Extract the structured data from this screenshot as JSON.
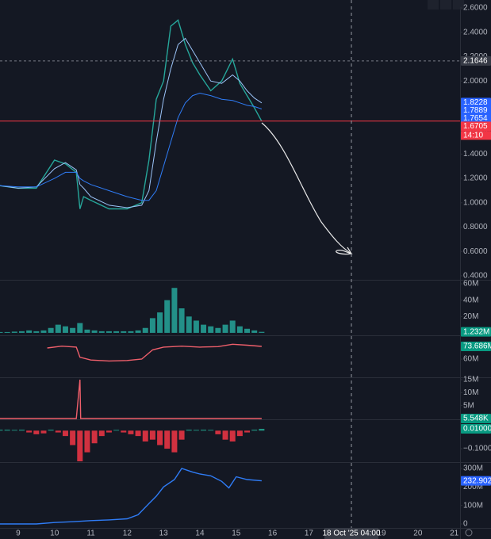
{
  "chart_data": [
    {
      "type": "line",
      "x": [
        8.5,
        9,
        9.5,
        10,
        10.3,
        10.6,
        10.7,
        10.8,
        11,
        11.5,
        12,
        12.4,
        12.6,
        12.8,
        13,
        13.2,
        13.4,
        13.6,
        13.8,
        14,
        14.3,
        14.6,
        14.9,
        15.1,
        15.3,
        15.5,
        15.7
      ],
      "series": [
        {
          "color": "#26a69a",
          "values": [
            1.14,
            1.12,
            1.12,
            1.35,
            1.32,
            1.25,
            0.95,
            1.05,
            1.02,
            0.95,
            0.95,
            1.0,
            1.35,
            1.85,
            2.0,
            2.45,
            2.5,
            2.3,
            2.15,
            2.05,
            1.92,
            2.0,
            2.18,
            1.98,
            1.88,
            1.78,
            1.67
          ]
        },
        {
          "color": "#9cc4f8",
          "values": [
            1.14,
            1.12,
            1.13,
            1.28,
            1.33,
            1.27,
            1.15,
            1.12,
            1.05,
            0.98,
            0.96,
            0.98,
            1.1,
            1.5,
            1.85,
            2.1,
            2.3,
            2.35,
            2.25,
            2.15,
            2.0,
            1.98,
            2.05,
            2.0,
            1.92,
            1.86,
            1.82
          ]
        },
        {
          "color": "#2f7cf6",
          "values": [
            1.14,
            1.13,
            1.13,
            1.2,
            1.25,
            1.25,
            1.2,
            1.18,
            1.15,
            1.1,
            1.05,
            1.02,
            1.02,
            1.1,
            1.3,
            1.5,
            1.7,
            1.82,
            1.88,
            1.9,
            1.88,
            1.85,
            1.84,
            1.82,
            1.8,
            1.79,
            1.77
          ]
        }
      ],
      "ylim": [
        0.374,
        2.665
      ],
      "yticks": [
        {
          "value": 0.4,
          "label": "0.4000"
        },
        {
          "value": 0.6,
          "label": "0.6000"
        },
        {
          "value": 0.8,
          "label": "0.8000"
        },
        {
          "value": 1.0,
          "label": "1.0000"
        },
        {
          "value": 1.2,
          "label": "1.2000"
        },
        {
          "value": 1.4,
          "label": "1.4000"
        },
        {
          "value": 1.6,
          "label": "1.6000"
        },
        {
          "value": 1.8,
          "label": "1.8000"
        },
        {
          "value": 2.0,
          "label": "2.0000"
        },
        {
          "value": 2.2,
          "label": "2.2000"
        },
        {
          "value": 2.4,
          "label": "2.4000"
        },
        {
          "value": 2.6,
          "label": "2.6000"
        }
      ],
      "labels": [
        {
          "value": 2.1646,
          "color": "#363a45",
          "line": "dashed"
        },
        {
          "value": 1.8228,
          "color": "#2962ff"
        },
        {
          "value": 1.7889,
          "color": "#2962ff"
        },
        {
          "value": 1.7654,
          "color": "#2962ff"
        },
        {
          "value": 1.6705,
          "color": "#f23645",
          "line": "solid",
          "time": "14:10"
        }
      ]
    },
    {
      "type": "bar",
      "x": [
        8.5,
        8.7,
        8.9,
        9.1,
        9.3,
        9.5,
        9.7,
        9.9,
        10.1,
        10.3,
        10.5,
        10.7,
        10.9,
        11.1,
        11.3,
        11.5,
        11.7,
        11.9,
        12.1,
        12.3,
        12.5,
        12.7,
        12.9,
        13.1,
        13.3,
        13.5,
        13.7,
        13.9,
        14.1,
        14.3,
        14.5,
        14.7,
        14.9,
        15.1,
        15.3,
        15.5,
        15.7
      ],
      "values": [
        1000000,
        1000000,
        1500000,
        2000000,
        3000000,
        2000000,
        3000000,
        6000000,
        10000000,
        8000000,
        6000000,
        12000000,
        4000000,
        3000000,
        2000000,
        2000000,
        2000000,
        2000000,
        2000000,
        3000000,
        6000000,
        18000000,
        25000000,
        40000000,
        55000000,
        30000000,
        20000000,
        15000000,
        10000000,
        8000000,
        6000000,
        10000000,
        15000000,
        8000000,
        5000000,
        3000000,
        1232000
      ],
      "color": "#26a69a",
      "ylim": [
        -2000000,
        62000000
      ],
      "yticks": [
        {
          "value": 20000000,
          "label": "20M"
        },
        {
          "value": 40000000,
          "label": "40M"
        },
        {
          "value": 60000000,
          "label": "60M"
        }
      ],
      "last_label": {
        "value": 1232000,
        "label": "1.232M",
        "color": "#089981"
      }
    },
    {
      "type": "line",
      "x": [
        9.8,
        10.2,
        10.6,
        10.7,
        11,
        11.5,
        12,
        12.4,
        12.7,
        13,
        13.5,
        14,
        14.5,
        14.9,
        15.3,
        15.7
      ],
      "series": [
        {
          "color": "#ef5f6b",
          "values": [
            72000000,
            74000000,
            73000000,
            62000000,
            59000000,
            58000000,
            58500000,
            60000000,
            70000000,
            73000000,
            74000000,
            73000000,
            73500000,
            76000000,
            75000000,
            73686000
          ]
        }
      ],
      "ylim": [
        41200000,
        84000000
      ],
      "yticks": [
        {
          "value": 60000000,
          "label": "60M"
        }
      ],
      "last_label": {
        "value": 73686000,
        "label": "73.686M",
        "color": "#089981"
      }
    },
    {
      "type": "line",
      "x": [
        8.5,
        10.6,
        10.7,
        10.72,
        10.8,
        12,
        13,
        14,
        15,
        15.7
      ],
      "series": [
        {
          "color": "#ef5f6b",
          "values": [
            5000,
            5000,
            15000000,
            5000,
            5000,
            5000,
            6000,
            5000,
            5000,
            5548
          ]
        }
      ],
      "ylim": [
        0,
        15300000
      ],
      "yticks": [
        {
          "value": 5000000,
          "label": "5M"
        },
        {
          "value": 10000000,
          "label": "10M"
        },
        {
          "value": 15000000,
          "label": "15M"
        }
      ],
      "last_label": {
        "value": 5548,
        "label": "5.548K",
        "color": "#089981"
      }
    },
    {
      "type": "bar",
      "x": [
        8.5,
        8.7,
        8.9,
        9.1,
        9.3,
        9.5,
        9.7,
        9.9,
        10.1,
        10.3,
        10.5,
        10.7,
        10.9,
        11.1,
        11.3,
        11.5,
        11.7,
        11.9,
        12.1,
        12.3,
        12.5,
        12.7,
        12.9,
        13.1,
        13.3,
        13.5,
        13.7,
        13.9,
        14.1,
        14.3,
        14.5,
        14.7,
        14.9,
        15.1,
        15.3,
        15.5,
        15.7
      ],
      "values": [
        0.005,
        0.005,
        0.004,
        0.005,
        -0.01,
        -0.02,
        -0.015,
        0.005,
        -0.01,
        -0.03,
        -0.08,
        -0.17,
        -0.12,
        -0.07,
        -0.03,
        -0.01,
        0.004,
        -0.01,
        -0.02,
        -0.03,
        -0.06,
        -0.05,
        -0.08,
        -0.1,
        -0.12,
        -0.05,
        0.005,
        0.004,
        0.005,
        0.004,
        -0.02,
        -0.05,
        -0.06,
        -0.03,
        -0.01,
        0.005,
        0.01
      ],
      "up_color": "#22ab94",
      "down_color": "#f23645",
      "ylim": [
        -0.17,
        0.054
      ],
      "yticks": [
        {
          "value": -0.1,
          "label": "−0.100000"
        }
      ],
      "last_label": {
        "value": 0.01,
        "label": "0.010000",
        "color": "#089981"
      }
    },
    {
      "type": "line",
      "x": [
        8.5,
        9.5,
        10,
        10.5,
        11,
        11.5,
        12,
        12.3,
        12.6,
        12.8,
        13,
        13.3,
        13.5,
        13.8,
        14,
        14.3,
        14.6,
        14.8,
        15,
        15.3,
        15.7
      ],
      "series": [
        {
          "color": "#2f7cf6",
          "values": [
            0,
            0,
            8000000,
            12000000,
            18000000,
            22000000,
            28000000,
            50000000,
            110000000,
            150000000,
            200000000,
            240000000,
            300000000,
            280000000,
            270000000,
            260000000,
            230000000,
            195000000,
            255000000,
            240000000,
            232902000
          ]
        }
      ],
      "ylim": [
        -17000000,
        325500000
      ],
      "yticks": [
        0,
        {
          "value": 100000000,
          "label": "100M"
        },
        {
          "value": 200000000,
          "label": "200M"
        },
        {
          "value": 300000000,
          "label": "300M"
        }
      ],
      "last_label": {
        "value": 232902000,
        "label": "232.902M",
        "color": "#2962ff"
      },
      "xlim": [
        8.5,
        21.16
      ],
      "xticks": [
        9,
        10,
        11,
        12,
        13,
        14,
        15,
        16,
        17,
        19,
        20,
        21
      ],
      "crosshair": {
        "x": 18.17,
        "label": "18 Oct '25  04:00"
      }
    }
  ]
}
